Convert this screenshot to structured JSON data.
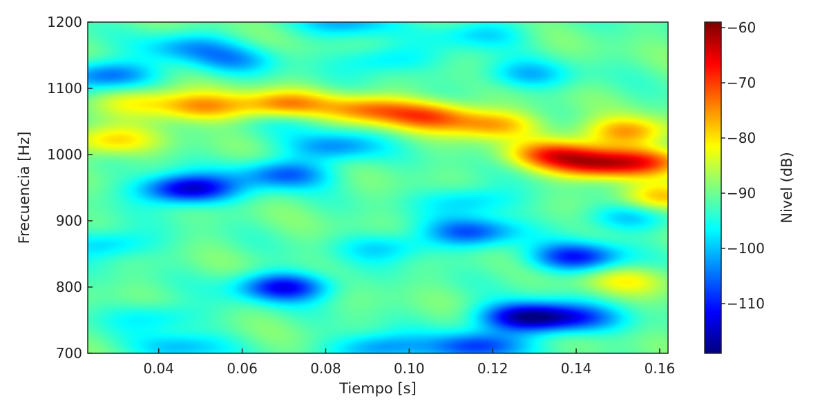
{
  "chart_data": {
    "type": "heatmap",
    "title": "",
    "xlabel": "Tiempo [s]",
    "ylabel": "Frecuencia [Hz]",
    "colorbar_label": "Nivel (dB)",
    "xlim": [
      0.023,
      0.162
    ],
    "ylim": [
      700,
      1200
    ],
    "xticks": [
      0.04,
      0.06,
      0.08,
      0.1,
      0.12,
      0.14,
      0.16
    ],
    "xtick_labels": [
      "0.04",
      "0.06",
      "0.08",
      "0.10",
      "0.12",
      "0.14",
      "0.16"
    ],
    "yticks": [
      700,
      800,
      900,
      1000,
      1100,
      1200
    ],
    "ytick_labels": [
      "700",
      "800",
      "900",
      "1000",
      "1100",
      "1200"
    ],
    "colorbar_range": [
      -119,
      -59
    ],
    "colorbar_ticks": [
      -60,
      -70,
      -80,
      -90,
      -100,
      -110
    ],
    "colorbar_tick_labels": [
      "−60",
      "−70",
      "−80",
      "−90",
      "−100",
      "−110"
    ],
    "colormap": "jet",
    "background_level_db": -91,
    "features": [
      {
        "t": 0.035,
        "f": 1080,
        "level_db": -82
      },
      {
        "t": 0.05,
        "f": 1072,
        "level_db": -76
      },
      {
        "t": 0.07,
        "f": 1075,
        "level_db": -74
      },
      {
        "t": 0.09,
        "f": 1068,
        "level_db": -75
      },
      {
        "t": 0.105,
        "f": 1058,
        "level_db": -74
      },
      {
        "t": 0.12,
        "f": 1045,
        "level_db": -77
      },
      {
        "t": 0.135,
        "f": 1000,
        "level_db": -72
      },
      {
        "t": 0.145,
        "f": 985,
        "level_db": -71
      },
      {
        "t": 0.158,
        "f": 990,
        "level_db": -75
      },
      {
        "t": 0.16,
        "f": 935,
        "level_db": -78
      },
      {
        "t": 0.152,
        "f": 1035,
        "level_db": -76
      },
      {
        "t": 0.028,
        "f": 1020,
        "level_db": -79
      },
      {
        "t": 0.028,
        "f": 1120,
        "level_db": -106
      },
      {
        "t": 0.047,
        "f": 1162,
        "level_db": -101
      },
      {
        "t": 0.058,
        "f": 1142,
        "level_db": -100
      },
      {
        "t": 0.094,
        "f": 1142,
        "level_db": -99
      },
      {
        "t": 0.117,
        "f": 1182,
        "level_db": -99
      },
      {
        "t": 0.128,
        "f": 1120,
        "level_db": -100
      },
      {
        "t": 0.072,
        "f": 1055,
        "level_db": -96
      },
      {
        "t": 0.082,
        "f": 1012,
        "level_db": -103
      },
      {
        "t": 0.047,
        "f": 948,
        "level_db": -116
      },
      {
        "t": 0.07,
        "f": 970,
        "level_db": -106
      },
      {
        "t": 0.115,
        "f": 930,
        "level_db": -100
      },
      {
        "t": 0.095,
        "f": 860,
        "level_db": -99
      },
      {
        "t": 0.115,
        "f": 883,
        "level_db": -106
      },
      {
        "t": 0.14,
        "f": 845,
        "level_db": -110
      },
      {
        "t": 0.152,
        "f": 905,
        "level_db": -100
      },
      {
        "t": 0.07,
        "f": 800,
        "level_db": -112
      },
      {
        "t": 0.04,
        "f": 755,
        "level_db": -98
      },
      {
        "t": 0.128,
        "f": 755,
        "level_db": -116
      },
      {
        "t": 0.14,
        "f": 752,
        "level_db": -105
      },
      {
        "t": 0.045,
        "f": 708,
        "level_db": -100
      },
      {
        "t": 0.093,
        "f": 708,
        "level_db": -104
      },
      {
        "t": 0.116,
        "f": 710,
        "level_db": -108
      },
      {
        "t": 0.028,
        "f": 865,
        "level_db": -100
      },
      {
        "t": 0.152,
        "f": 810,
        "level_db": -83
      },
      {
        "t": 0.085,
        "f": 1200,
        "level_db": -101
      }
    ]
  }
}
